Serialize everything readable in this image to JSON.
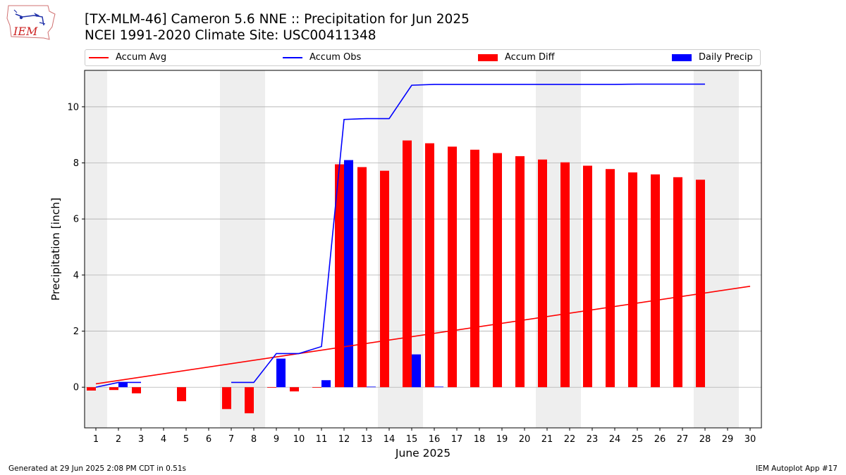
{
  "header": {
    "title_line1": "[TX-MLM-46] Cameron 5.6 NNE :: Precipitation for Jun 2025",
    "title_line2": "NCEI 1991-2020 Climate Site: USC00411348"
  },
  "logo": {
    "text": "IEM",
    "icon": "iowa-map-logo-icon"
  },
  "footer": {
    "generated": "Generated at 29 Jun 2025 2:08 PM CDT in 0.51s",
    "app": "IEM Autoplot App #17"
  },
  "colors": {
    "avg": "#ff0000",
    "obs": "#0000ff",
    "diff": "#ff0000",
    "daily": "#0000ff",
    "weekend": "#eeeeee",
    "grid": "#b0b0b0"
  },
  "chart_data": {
    "type": "bar",
    "title": "[TX-MLM-46] Cameron 5.6 NNE :: Precipitation for Jun 2025",
    "subtitle": "NCEI 1991-2020 Climate Site: USC00411348",
    "xlabel": "June 2025",
    "ylabel": "Precipitation [inch]",
    "xlim": [
      0.5,
      30.5
    ],
    "ylim": [
      -1.45,
      11.3
    ],
    "yticks": [
      0,
      2,
      4,
      6,
      8,
      10
    ],
    "xticks": [
      1,
      2,
      3,
      4,
      5,
      6,
      7,
      8,
      9,
      10,
      11,
      12,
      13,
      14,
      15,
      16,
      17,
      18,
      19,
      20,
      21,
      22,
      23,
      24,
      25,
      26,
      27,
      28,
      29,
      30
    ],
    "grid": "y",
    "legend_position": "top",
    "weekend_bands": [
      [
        0.5,
        1.5
      ],
      [
        6.5,
        8.5
      ],
      [
        13.5,
        15.5
      ],
      [
        20.5,
        22.5
      ],
      [
        27.5,
        29.5
      ]
    ],
    "legend": [
      "Accum Avg",
      "Accum Obs",
      "Accum Diff",
      "Daily Precip"
    ],
    "series": [
      {
        "name": "Accum Avg",
        "kind": "line",
        "color": "#ff0000",
        "x": [
          1,
          30
        ],
        "y": [
          0.12,
          3.6
        ]
      },
      {
        "name": "Accum Obs",
        "kind": "line",
        "color": "#0000ff",
        "segments": [
          {
            "x": [
              1,
              2,
              3
            ],
            "y": [
              0.0,
              0.17,
              0.17
            ]
          },
          {
            "x": [
              7,
              8,
              9,
              10,
              11,
              12,
              13,
              14,
              15,
              16,
              17,
              18,
              19,
              20,
              21,
              22,
              23,
              24,
              25,
              26,
              27,
              28
            ],
            "y": [
              0.17,
              0.17,
              1.2,
              1.2,
              1.45,
              9.55,
              9.58,
              9.58,
              10.77,
              10.8,
              10.8,
              10.8,
              10.8,
              10.8,
              10.8,
              10.8,
              10.8,
              10.8,
              10.81,
              10.81,
              10.81,
              10.81
            ]
          }
        ]
      },
      {
        "name": "Accum Diff",
        "kind": "bar",
        "color": "#ff0000",
        "x": [
          1,
          2,
          3,
          5,
          7,
          8,
          9,
          10,
          11,
          12,
          13,
          14,
          15,
          16,
          17,
          18,
          19,
          20,
          21,
          22,
          23,
          24,
          25,
          26,
          27,
          28
        ],
        "values": [
          -0.12,
          -0.1,
          -0.22,
          -0.5,
          -0.78,
          -0.93,
          -0.02,
          -0.15,
          -0.02,
          7.95,
          7.85,
          7.72,
          8.8,
          8.7,
          8.58,
          8.47,
          8.35,
          8.24,
          8.12,
          8.02,
          7.9,
          7.78,
          7.66,
          7.59,
          7.49,
          7.4
        ]
      },
      {
        "name": "Daily Precip",
        "kind": "bar",
        "color": "#0000ff",
        "x": [
          2,
          9,
          11,
          12,
          13,
          15,
          16
        ],
        "values": [
          0.17,
          1.02,
          0.25,
          8.1,
          0.02,
          1.17,
          0.02
        ]
      }
    ]
  }
}
